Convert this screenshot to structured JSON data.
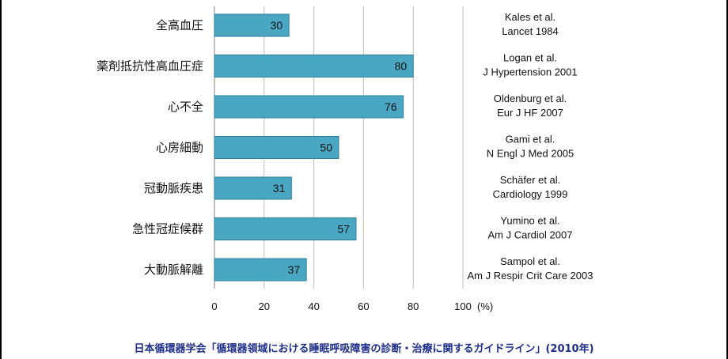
{
  "colors": {
    "bar": "#4aa7c4",
    "bar_stroke": "#2f7f9a",
    "grid": "#bfbfbf",
    "caption": "#1d2f8a"
  },
  "chart_data": {
    "type": "bar",
    "orientation": "horizontal",
    "categories": [
      "全高血圧",
      "薬剤抵抗性高血圧症",
      "心不全",
      "心房細動",
      "冠動脈疾患",
      "急性冠症候群",
      "大動脈解離"
    ],
    "values": [
      30,
      80,
      76,
      50,
      31,
      57,
      37
    ],
    "xlim": [
      0,
      100
    ],
    "xticks": [
      "0",
      "20",
      "40",
      "60",
      "80",
      "100"
    ],
    "xunit": "(%)",
    "grid": true,
    "references": [
      [
        "Kales et al.",
        "Lancet 1984"
      ],
      [
        "Logan et al.",
        "J Hypertension 2001"
      ],
      [
        "Oldenburg et al.",
        "Eur J HF 2007"
      ],
      [
        "Gami et al.",
        "N Engl J Med 2005"
      ],
      [
        "Schäfer et al.",
        "Cardiology 1999"
      ],
      [
        "Yumino et al.",
        "Am J Cardiol 2007"
      ],
      [
        "Sampol et al.",
        "Am J Respir Crit Care 2003"
      ]
    ]
  },
  "caption": "日本循環器学会「循環器領域における睡眠呼吸障害の診断・治療に関するガイドライン」(2010年)"
}
